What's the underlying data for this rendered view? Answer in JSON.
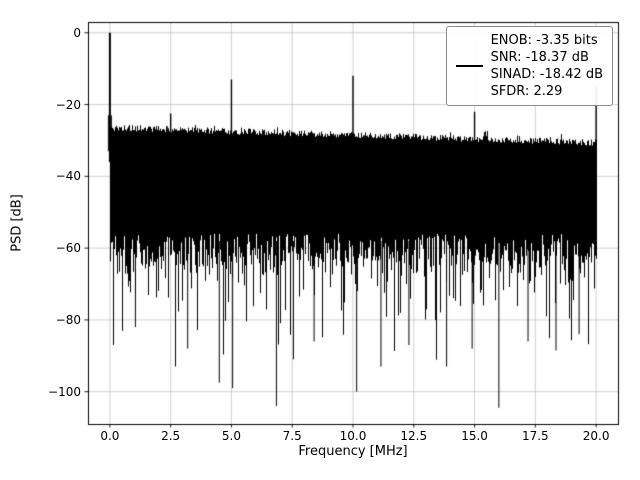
{
  "figure": {
    "background": "#ffffff"
  },
  "chart_data": {
    "type": "line",
    "title": "",
    "xlabel": "Frequency [MHz]",
    "ylabel": "PSD [dB]",
    "xlim": [
      -0.9,
      20.9
    ],
    "ylim": [
      -109,
      3
    ],
    "xticks": [
      0.0,
      2.5,
      5.0,
      7.5,
      10.0,
      12.5,
      15.0,
      17.5,
      20.0
    ],
    "xtick_labels": [
      "0.0",
      "2.5",
      "5.0",
      "7.5",
      "10.0",
      "12.5",
      "15.0",
      "17.5",
      "20.0"
    ],
    "yticks": [
      0,
      -20,
      -40,
      -60,
      -80,
      -100
    ],
    "ytick_labels": [
      "0",
      "−20",
      "−40",
      "−60",
      "−80",
      "−100"
    ],
    "grid": true,
    "line_color": "#000000",
    "grid_color": "#b0b0b0",
    "legend": {
      "position": "upper right",
      "lines": [
        "ENOB: -3.35 bits",
        "SNR: -18.37 dB",
        "SINAD: -18.42 dB",
        "SFDR: 2.29"
      ]
    },
    "metrics": {
      "enob_bits": -3.35,
      "snr_db": -18.37,
      "sinad_db": -18.42,
      "sfdr": 2.29
    },
    "fundamental": {
      "freq_mhz": 0.0,
      "psd_db": 0.0
    },
    "spurs": [
      {
        "freq_mhz": 2.35,
        "psd_db": -26.0
      },
      {
        "freq_mhz": 2.5,
        "psd_db": -22.5
      },
      {
        "freq_mhz": 5.0,
        "psd_db": -13.0
      },
      {
        "freq_mhz": 10.0,
        "psd_db": -12.0
      },
      {
        "freq_mhz": 15.0,
        "psd_db": -22.0
      },
      {
        "freq_mhz": 20.0,
        "psd_db": -15.0
      }
    ],
    "notches": [
      {
        "freq_mhz": 0.15,
        "psd_db": -87
      },
      {
        "freq_mhz": 1.05,
        "psd_db": -82
      },
      {
        "freq_mhz": 2.7,
        "psd_db": -93
      },
      {
        "freq_mhz": 3.2,
        "psd_db": -88
      },
      {
        "freq_mhz": 4.5,
        "psd_db": -97.5
      },
      {
        "freq_mhz": 5.05,
        "psd_db": -99
      },
      {
        "freq_mhz": 6.85,
        "psd_db": -104
      },
      {
        "freq_mhz": 7.55,
        "psd_db": -91
      },
      {
        "freq_mhz": 8.4,
        "psd_db": -86
      },
      {
        "freq_mhz": 10.15,
        "psd_db": -100
      },
      {
        "freq_mhz": 11.15,
        "psd_db": -93
      },
      {
        "freq_mhz": 12.3,
        "psd_db": -87
      },
      {
        "freq_mhz": 13.85,
        "psd_db": -93
      },
      {
        "freq_mhz": 14.9,
        "psd_db": -88
      },
      {
        "freq_mhz": 16.0,
        "psd_db": -104.5
      },
      {
        "freq_mhz": 17.2,
        "psd_db": -86
      },
      {
        "freq_mhz": 18.35,
        "psd_db": -88.5
      },
      {
        "freq_mhz": 19.3,
        "psd_db": -84
      }
    ],
    "noise_floor": {
      "top_db_at_0mhz": -27.3,
      "top_db_at_20mhz": -31.5,
      "dense_bottom_db": -62,
      "tail_min_db": -94,
      "seed": 42
    }
  }
}
